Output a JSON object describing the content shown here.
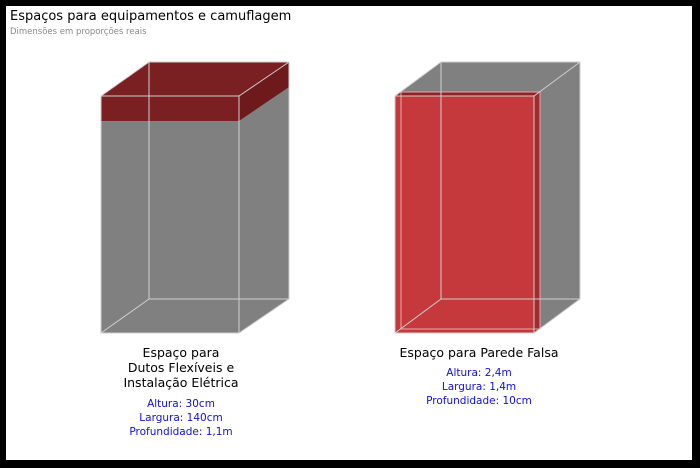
{
  "header": {
    "title": "Espaços para equipamentos e camuflagem",
    "subtitle": "Dimensões em proporções reais"
  },
  "boxes": [
    {
      "caption_lines": [
        "Espaço para",
        "Dutos Flexíveis e",
        "Instalação Elétrica"
      ],
      "dims": {
        "altura": "Altura: 30cm",
        "largura": "Largura: 140cm",
        "profundidade": "Profundidade: 1,1m"
      }
    },
    {
      "caption_lines": [
        "Espaço para Parede Falsa"
      ],
      "dims": {
        "altura": "Altura: 2,4m",
        "largura": "Largura: 1,4m",
        "profundidade": "Profundidade: 10cm"
      }
    }
  ],
  "colors": {
    "box_face": "#808080",
    "highlight_dark": "#7a1f22",
    "highlight_red": "#c5393d",
    "dims_text": "#1010d8"
  }
}
